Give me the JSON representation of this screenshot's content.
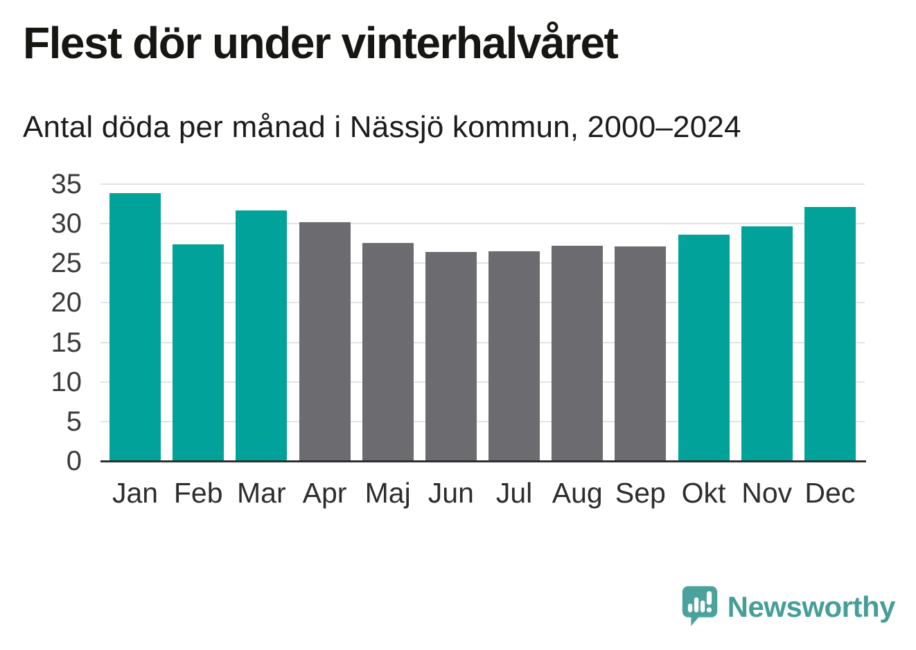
{
  "page": {
    "background": "#ffffff"
  },
  "header": {
    "title": "Flest dör under vinterhalvåret",
    "subtitle": "Antal döda per månad i Nässjö kommun, 2000–2024"
  },
  "branding": {
    "name": "Newsworthy",
    "logo_icon": "speech-bubble-bar-chart-icon",
    "text_color": "#459e98",
    "bubble_color": "#4ba29c",
    "bubble_glyph_color": "#ffffff"
  },
  "colors": {
    "winter_bar": "#00a29a",
    "summer_bar": "#6b6b70",
    "gridline": "#e2e2e2",
    "axis_line": "#2f2f2f",
    "y_tick_label": "#3a3a3a",
    "x_tick_label": "#2d2d2d",
    "title_text": "#161613"
  },
  "chart_data": {
    "type": "bar",
    "title": "Flest dör under vinterhalvåret",
    "subtitle": "Antal döda per månad i Nässjö kommun, 2000–2024",
    "categories": [
      "Jan",
      "Feb",
      "Mar",
      "Apr",
      "Maj",
      "Jun",
      "Jul",
      "Aug",
      "Sep",
      "Okt",
      "Nov",
      "Dec"
    ],
    "values": [
      33.9,
      27.4,
      31.7,
      30.2,
      27.6,
      26.4,
      26.5,
      27.2,
      27.1,
      28.6,
      29.7,
      32.1
    ],
    "bar_groups": [
      "winter",
      "winter",
      "winter",
      "summer",
      "summer",
      "summer",
      "summer",
      "summer",
      "summer",
      "winter",
      "winter",
      "winter"
    ],
    "group_colors": {
      "winter": "#00a29a",
      "summer": "#6b6b70"
    },
    "xlabel": "",
    "ylabel": "",
    "ylim": [
      0,
      35
    ],
    "yticks": [
      0,
      5,
      10,
      15,
      20,
      25,
      30,
      35
    ],
    "grid": true,
    "legend": false
  }
}
